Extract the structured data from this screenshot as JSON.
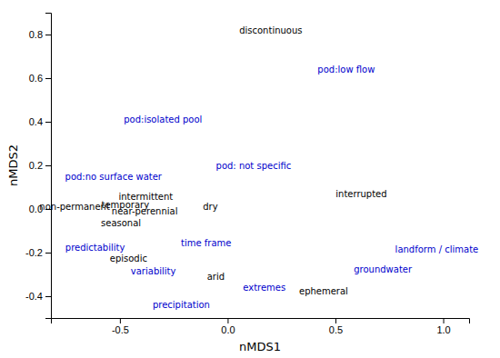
{
  "chart_data": {
    "type": "scatter",
    "marker": "text",
    "labels": [
      "discontinuous",
      "pod:low flow",
      "pod:isolated pool",
      "pod: not specific",
      "pod:no surface water",
      "interrupted",
      "intermittent",
      "temporary",
      "near-perennial",
      "non-permanent",
      "dry",
      "seasonal",
      "time frame",
      "predictability",
      "landform / climate",
      "episodic",
      "groundwater",
      "variability",
      "arid",
      "extremes",
      "ephemeral",
      "precipitation"
    ],
    "x": [
      0.2,
      0.55,
      -0.3,
      0.12,
      -0.53,
      0.62,
      -0.38,
      -0.475,
      -0.385,
      -0.71,
      -0.08,
      -0.495,
      -0.1,
      -0.615,
      0.97,
      -0.46,
      0.72,
      -0.345,
      -0.055,
      0.17,
      0.445,
      -0.215
    ],
    "values": [
      0.82,
      0.64,
      0.41,
      0.2,
      0.15,
      0.07,
      0.055,
      0.018,
      -0.012,
      0.01,
      0.01,
      -0.065,
      -0.155,
      -0.175,
      -0.185,
      -0.225,
      -0.275,
      -0.285,
      -0.31,
      -0.36,
      -0.375,
      -0.44
    ],
    "colors": [
      "black",
      "#0000cc",
      "#0000cc",
      "#0000cc",
      "#0000cc",
      "black",
      "black",
      "black",
      "black",
      "black",
      "black",
      "black",
      "#0000cc",
      "#0000cc",
      "#0000cc",
      "black",
      "#0000cc",
      "#0000cc",
      "black",
      "#0000cc",
      "black",
      "#0000cc"
    ],
    "xlabel": "nMDS1",
    "ylabel": "nMDS2",
    "xlim": [
      -0.82,
      1.12
    ],
    "ylim": [
      -0.5,
      0.9
    ],
    "xticks": [
      -0.5,
      {
        "value": 0,
        "label": "0.0"
      },
      0.5,
      {
        "value": 1,
        "label": "1.0"
      }
    ],
    "yticks": [
      -0.4,
      -0.2,
      {
        "value": 0,
        "label": "0.0"
      },
      0.2,
      0.4,
      0.6,
      0.8
    ],
    "grid": false
  }
}
